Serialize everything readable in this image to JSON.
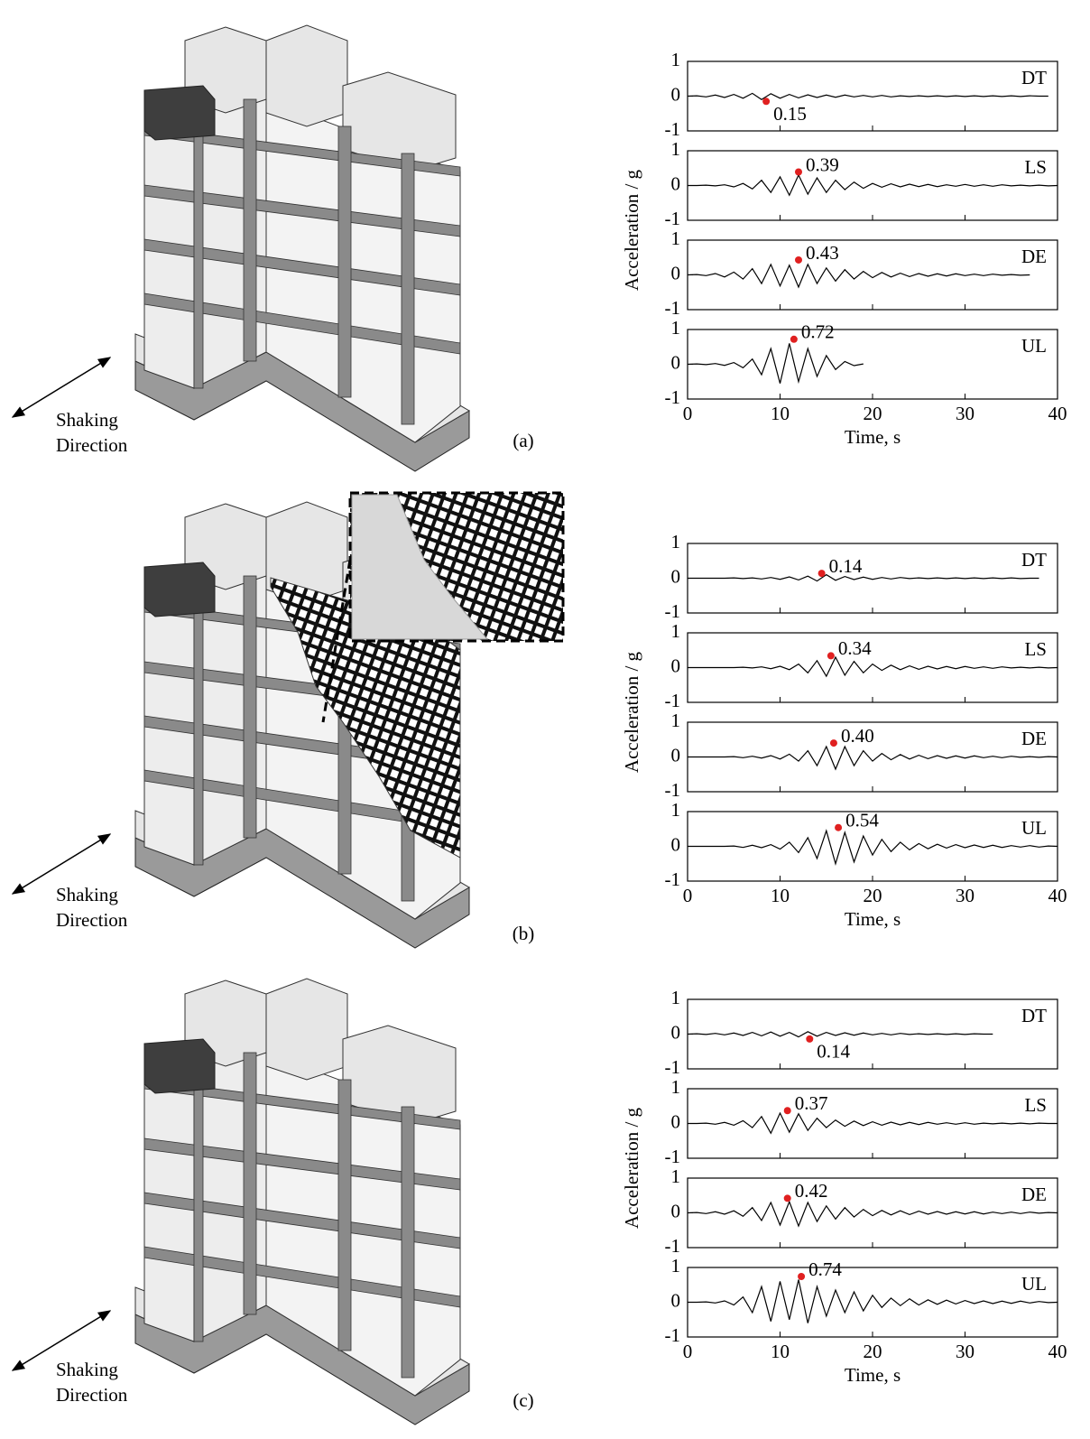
{
  "chart_data": [
    {
      "type": "line",
      "label": "(a)",
      "annotations": [
        "Shaking",
        "Direction"
      ],
      "ylabel": "Acceleration / g",
      "xlabel": "Time, s",
      "xlim": [
        0,
        40
      ],
      "xticks": [
        0,
        10,
        20,
        30,
        40
      ],
      "ylim": [
        -1,
        1
      ],
      "yticks": [
        -1,
        0,
        1
      ],
      "x": [
        0,
        1,
        2,
        3,
        4,
        5,
        6,
        7,
        8,
        9,
        10,
        11,
        12,
        13,
        14,
        15,
        16,
        17,
        18,
        19,
        20,
        21,
        22,
        23,
        24,
        25,
        26,
        27,
        28,
        29,
        30,
        31,
        32,
        33,
        34,
        35,
        36,
        37,
        38,
        39,
        40
      ],
      "series": [
        {
          "name": "DT",
          "color": "#000000",
          "peak_x": 8.5,
          "peak_y": -0.15,
          "pga": 0.15,
          "values": [
            0,
            0.01,
            -0.02,
            0.03,
            -0.04,
            0.05,
            -0.06,
            0.08,
            -0.1,
            0.07,
            -0.06,
            0.05,
            -0.05,
            0.04,
            -0.04,
            0.03,
            -0.03,
            0.03,
            -0.02,
            0.02,
            -0.02,
            0.02,
            -0.02,
            0.01,
            -0.01,
            0.01,
            -0.01,
            0.01,
            -0.01,
            0.01,
            -0.01,
            0.01,
            -0.01,
            0.01,
            -0.01,
            0.01,
            -0.01,
            0.01,
            0,
            0,
            null
          ]
        },
        {
          "name": "LS",
          "color": "#000000",
          "peak_x": 12,
          "peak_y": 0.39,
          "pga": 0.39,
          "values": [
            0,
            0,
            0.01,
            -0.01,
            0.02,
            -0.04,
            0.06,
            -0.1,
            0.15,
            -0.2,
            0.25,
            -0.28,
            0.3,
            -0.25,
            0.22,
            -0.2,
            0.15,
            -0.12,
            0.1,
            -0.08,
            0.06,
            -0.05,
            0.05,
            -0.04,
            0.04,
            -0.03,
            0.03,
            -0.03,
            0.02,
            -0.02,
            0.03,
            -0.02,
            0.02,
            -0.02,
            0.02,
            -0.01,
            0.01,
            -0.01,
            0.01,
            -0.01,
            0
          ]
        },
        {
          "name": "DE",
          "color": "#000000",
          "peak_x": 12,
          "peak_y": 0.43,
          "pga": 0.43,
          "values": [
            0,
            0.01,
            -0.02,
            0.04,
            -0.06,
            0.08,
            -0.12,
            0.18,
            -0.25,
            0.3,
            -0.32,
            0.28,
            -0.35,
            0.3,
            -0.25,
            0.2,
            -0.18,
            0.15,
            -0.12,
            0.1,
            -0.08,
            0.07,
            -0.06,
            0.05,
            -0.05,
            0.04,
            -0.04,
            0.03,
            -0.03,
            0.03,
            -0.02,
            0.02,
            -0.02,
            0.02,
            -0.01,
            0.01,
            -0.01,
            0,
            null,
            null,
            null
          ]
        },
        {
          "name": "UL",
          "color": "#000000",
          "peak_x": 11.5,
          "peak_y": 0.72,
          "pga": 0.72,
          "values": [
            0,
            0.01,
            -0.01,
            0.02,
            -0.03,
            0.05,
            -0.1,
            0.15,
            -0.3,
            0.45,
            -0.55,
            0.6,
            -0.5,
            0.45,
            -0.35,
            0.25,
            -0.15,
            0.08,
            -0.04,
            0.01,
            null,
            null,
            null,
            null,
            null,
            null,
            null,
            null,
            null,
            null,
            null,
            null,
            null,
            null,
            null,
            null,
            null,
            null,
            null,
            null,
            null
          ]
        }
      ]
    },
    {
      "type": "line",
      "label": "(b)",
      "annotations": [
        "Shaking",
        "Direction"
      ],
      "ylabel": "Acceleration / g",
      "xlabel": "Time, s",
      "xlim": [
        0,
        40
      ],
      "xticks": [
        0,
        10,
        20,
        30,
        40
      ],
      "ylim": [
        -1,
        1
      ],
      "yticks": [
        -1,
        0,
        1
      ],
      "x": [
        0,
        1,
        2,
        3,
        4,
        5,
        6,
        7,
        8,
        9,
        10,
        11,
        12,
        13,
        14,
        15,
        16,
        17,
        18,
        19,
        20,
        21,
        22,
        23,
        24,
        25,
        26,
        27,
        28,
        29,
        30,
        31,
        32,
        33,
        34,
        35,
        36,
        37,
        38,
        39,
        40
      ],
      "series": [
        {
          "name": "DT",
          "color": "#000000",
          "peak_x": 14.5,
          "peak_y": 0.14,
          "pga": 0.14,
          "values": [
            0,
            0,
            0,
            0,
            0,
            0.01,
            -0.01,
            0.01,
            -0.02,
            0.02,
            -0.03,
            0.04,
            -0.05,
            0.06,
            -0.08,
            0.1,
            -0.06,
            0.05,
            -0.04,
            0.03,
            -0.03,
            0.02,
            -0.02,
            0.02,
            -0.01,
            0.01,
            -0.01,
            0.01,
            -0.01,
            0.01,
            -0.01,
            0.01,
            -0.01,
            0.01,
            -0.01,
            0.01,
            -0.01,
            0,
            0,
            null,
            null
          ]
        },
        {
          "name": "LS",
          "color": "#000000",
          "peak_x": 15.5,
          "peak_y": 0.34,
          "pga": 0.34,
          "values": [
            0,
            0,
            0,
            0,
            0,
            0,
            0.01,
            -0.01,
            0.02,
            -0.03,
            0.04,
            -0.06,
            0.1,
            -0.15,
            0.2,
            -0.25,
            0.3,
            -0.22,
            0.18,
            -0.15,
            0.1,
            -0.08,
            0.07,
            -0.06,
            0.05,
            -0.05,
            0.04,
            -0.04,
            0.03,
            -0.03,
            0.03,
            -0.02,
            0.02,
            -0.02,
            0.02,
            -0.01,
            0.01,
            -0.01,
            0.01,
            -0.01,
            0
          ]
        },
        {
          "name": "DE",
          "color": "#000000",
          "peak_x": 15.8,
          "peak_y": 0.4,
          "pga": 0.4,
          "value_labels": "0.40",
          "values": [
            0,
            0,
            0,
            0,
            0,
            0.01,
            -0.02,
            0.02,
            -0.03,
            0.04,
            -0.06,
            0.08,
            -0.12,
            0.18,
            -0.25,
            0.3,
            -0.35,
            0.3,
            -0.25,
            0.18,
            -0.12,
            0.1,
            -0.08,
            0.07,
            -0.06,
            0.05,
            -0.05,
            0.04,
            -0.04,
            0.03,
            -0.03,
            0.03,
            -0.02,
            0.02,
            -0.02,
            0.02,
            -0.01,
            0.01,
            -0.01,
            0.01,
            0
          ]
        },
        {
          "name": "UL",
          "color": "#000000",
          "peak_x": 16.3,
          "peak_y": 0.54,
          "pga": 0.54,
          "values": [
            0,
            0,
            0,
            0,
            0,
            0.01,
            -0.03,
            0.03,
            -0.04,
            0.05,
            -0.08,
            0.12,
            -0.18,
            0.25,
            -0.35,
            0.45,
            -0.5,
            0.4,
            -0.45,
            0.3,
            -0.25,
            0.2,
            -0.15,
            0.12,
            -0.1,
            0.08,
            -0.07,
            0.06,
            -0.05,
            0.05,
            -0.04,
            0.04,
            -0.03,
            0.03,
            -0.03,
            0.02,
            -0.02,
            0.02,
            -0.02,
            0.01,
            0
          ]
        }
      ]
    },
    {
      "type": "line",
      "label": "(c)",
      "annotations": [
        "Shaking",
        "Direction"
      ],
      "ylabel": "Acceleration / g",
      "xlabel": "Time, s",
      "xlim": [
        0,
        40
      ],
      "xticks": [
        0,
        10,
        20,
        30,
        40
      ],
      "ylim": [
        -1,
        1
      ],
      "yticks": [
        -1,
        0,
        1
      ],
      "x": [
        0,
        1,
        2,
        3,
        4,
        5,
        6,
        7,
        8,
        9,
        10,
        11,
        12,
        13,
        14,
        15,
        16,
        17,
        18,
        19,
        20,
        21,
        22,
        23,
        24,
        25,
        26,
        27,
        28,
        29,
        30,
        31,
        32,
        33,
        34,
        35,
        36,
        37,
        38,
        39,
        40
      ],
      "series": [
        {
          "name": "DT",
          "color": "#000000",
          "peak_x": 13.2,
          "peak_y": -0.14,
          "pga": 0.14,
          "values": [
            0,
            0.01,
            -0.01,
            0.02,
            -0.02,
            0.03,
            -0.04,
            0.05,
            -0.05,
            0.06,
            -0.06,
            0.05,
            -0.08,
            0.07,
            -0.06,
            0.05,
            -0.04,
            0.04,
            -0.03,
            0.03,
            -0.02,
            0.02,
            -0.02,
            0.02,
            -0.01,
            0.01,
            -0.01,
            0.01,
            -0.01,
            0.01,
            -0.01,
            0.01,
            0,
            0,
            null,
            null,
            null,
            null,
            null,
            null,
            null
          ]
        },
        {
          "name": "LS",
          "color": "#000000",
          "peak_x": 10.8,
          "peak_y": 0.37,
          "pga": 0.37,
          "values": [
            0,
            0,
            0.01,
            -0.02,
            0.03,
            -0.05,
            0.08,
            -0.12,
            0.2,
            -0.28,
            0.3,
            -0.25,
            0.28,
            -0.2,
            0.15,
            -0.12,
            0.1,
            -0.08,
            0.07,
            -0.06,
            0.05,
            -0.05,
            0.04,
            -0.04,
            0.03,
            -0.03,
            0.03,
            -0.02,
            0.02,
            -0.02,
            0.02,
            -0.02,
            0.01,
            -0.01,
            0.01,
            -0.01,
            0.01,
            -0.01,
            0.01,
            0,
            0
          ]
        },
        {
          "name": "DE",
          "color": "#000000",
          "peak_x": 10.8,
          "peak_y": 0.42,
          "pga": 0.42,
          "values": [
            0,
            0.01,
            -0.02,
            0.03,
            -0.04,
            0.06,
            -0.1,
            0.15,
            -0.22,
            0.3,
            -0.35,
            0.32,
            -0.38,
            0.3,
            -0.25,
            0.2,
            -0.18,
            0.15,
            -0.12,
            0.1,
            -0.08,
            0.07,
            -0.06,
            0.06,
            -0.05,
            0.05,
            -0.04,
            0.04,
            -0.04,
            0.03,
            -0.03,
            0.03,
            -0.03,
            0.02,
            -0.02,
            0.02,
            -0.02,
            0.02,
            -0.01,
            0.01,
            0
          ]
        },
        {
          "name": "UL",
          "color": "#000000",
          "peak_x": 12.3,
          "peak_y": 0.74,
          "pga": 0.74,
          "values": [
            0,
            0,
            0.01,
            -0.02,
            0.04,
            -0.08,
            0.15,
            -0.3,
            0.45,
            -0.55,
            0.6,
            -0.5,
            0.65,
            -0.6,
            0.45,
            -0.4,
            0.35,
            -0.3,
            0.3,
            -0.25,
            0.2,
            -0.15,
            0.12,
            -0.1,
            0.1,
            -0.08,
            0.07,
            -0.06,
            0.06,
            -0.05,
            0.05,
            -0.04,
            0.04,
            -0.04,
            0.03,
            -0.03,
            0.03,
            -0.02,
            0.02,
            -0.01,
            0
          ]
        }
      ]
    }
  ]
}
